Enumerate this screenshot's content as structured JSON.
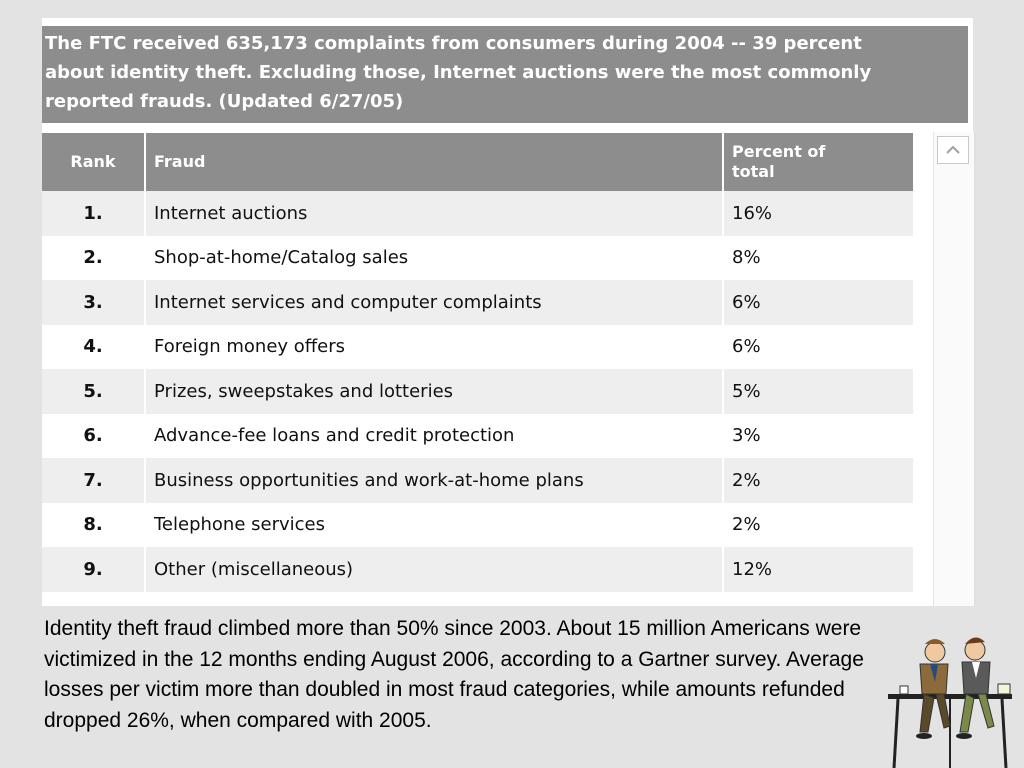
{
  "header": {
    "text": "The FTC received 635,173 complaints from consumers during 2004 -- 39 percent about identity theft. Excluding those, Internet auctions were the most commonly reported frauds. (Updated 6/27/05)",
    "lines": [
      "The FTC received 635,173 complaints from consumers during 2004 -- 39 percent",
      "about identity theft. Excluding those, Internet auctions were the most commonly",
      "reported frauds. (Updated 6/27/05)"
    ]
  },
  "table": {
    "columns": {
      "rank": "Rank",
      "fraud": "Fraud",
      "percent_line1": "Percent of",
      "percent_line2": "total"
    },
    "rows": [
      {
        "rank": "1.",
        "fraud": "Internet auctions",
        "percent": "16%"
      },
      {
        "rank": "2.",
        "fraud": "Shop-at-home/Catalog sales",
        "percent": "8%"
      },
      {
        "rank": "3.",
        "fraud": "Internet services and computer complaints",
        "percent": "6%"
      },
      {
        "rank": "4.",
        "fraud": "Foreign money offers",
        "percent": "6%"
      },
      {
        "rank": "5.",
        "fraud": "Prizes, sweepstakes and lotteries",
        "percent": "5%"
      },
      {
        "rank": "6.",
        "fraud": "Advance-fee loans and credit protection",
        "percent": "3%"
      },
      {
        "rank": "7.",
        "fraud": "Business opportunities and work-at-home plans",
        "percent": "2%"
      },
      {
        "rank": "8.",
        "fraud": "Telephone services",
        "percent": "2%"
      },
      {
        "rank": "9.",
        "fraud": "Other (miscellaneous)",
        "percent": "12%"
      }
    ]
  },
  "scrollbar": {
    "up_icon": "chevron-up-icon"
  },
  "footer": {
    "text": "Identity theft fraud climbed more than 50% since 2003. About 15 million Americans were victimized in the 12 months ending August 2006, according to a Gartner survey. Average losses per victim more than doubled in most fraud categories, while amounts refunded dropped 26%, when compared with 2005."
  },
  "clipart": {
    "icon": "two-men-at-table-icon"
  },
  "colors": {
    "header_bg": "#8d8d8d",
    "page_bg": "#e3e3e3",
    "row_alt": "#eeeeee"
  }
}
